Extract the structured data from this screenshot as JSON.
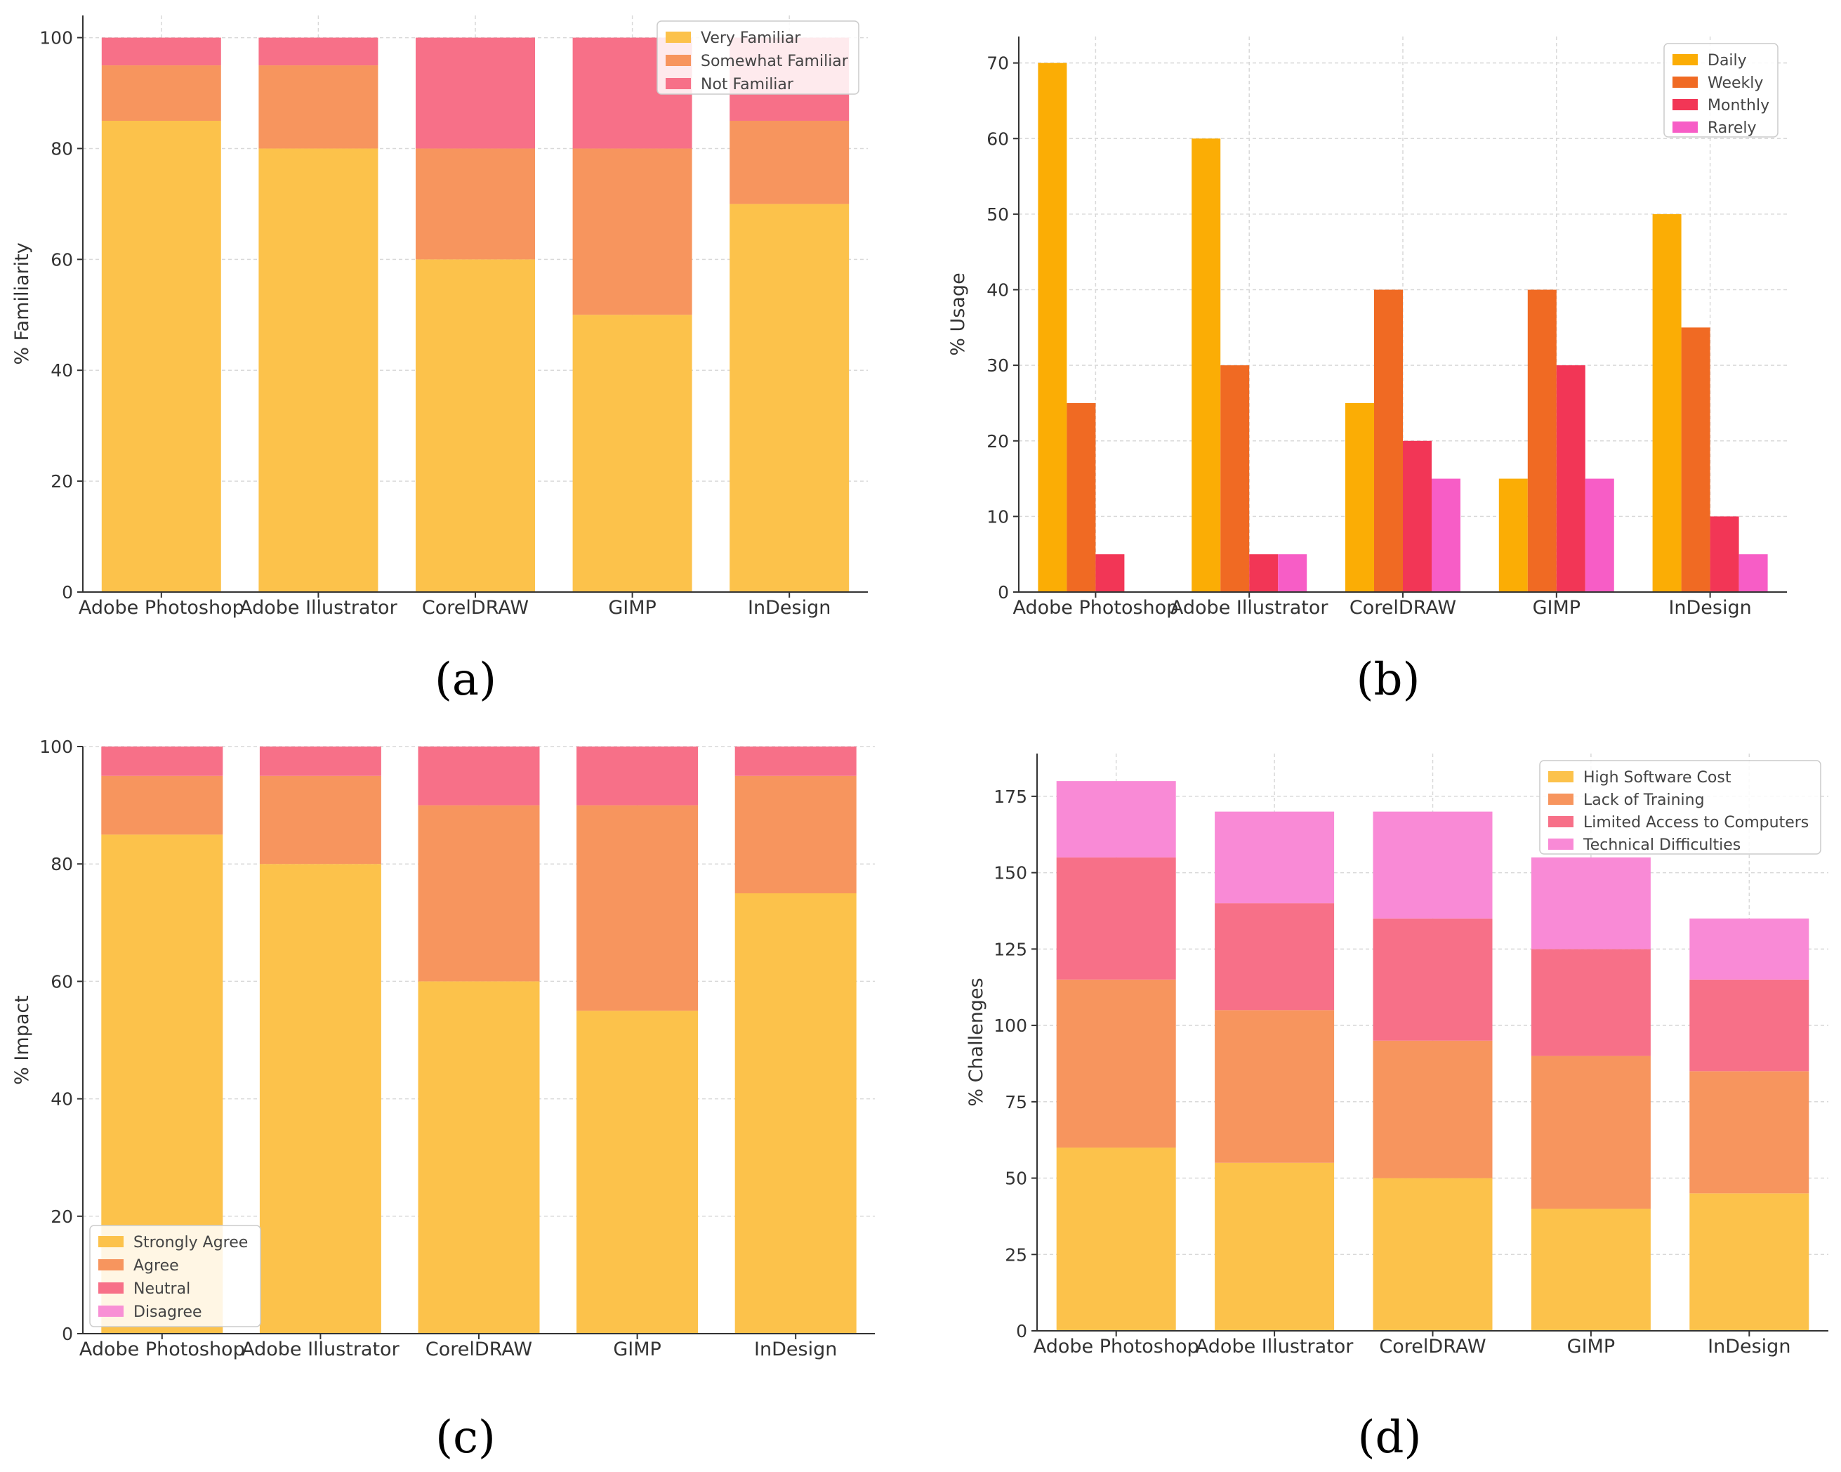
{
  "panel_labels": [
    "(a)",
    "(b)",
    "(c)",
    "(d)"
  ],
  "colors": {
    "familiarity": [
      "#fcc24b",
      "#f7955e",
      "#f77088"
    ],
    "usage": [
      "#fbad05",
      "#f06a23",
      "#f23656",
      "#f75dc6"
    ],
    "impact": [
      "#fcc24b",
      "#f7955e",
      "#f77088",
      "#f890d5"
    ],
    "challenges": [
      "#fcc24b",
      "#f7955e",
      "#f77088",
      "#f98ad6"
    ]
  },
  "chart_data": [
    {
      "type": "bar",
      "stacked": true,
      "categories": [
        "Adobe Photoshop",
        "Adobe Illustrator",
        "CorelDRAW",
        "GIMP",
        "InDesign"
      ],
      "series": [
        {
          "name": "Very Familiar",
          "values": [
            85,
            80,
            60,
            50,
            70
          ]
        },
        {
          "name": "Somewhat Familiar",
          "values": [
            10,
            15,
            20,
            30,
            15
          ]
        },
        {
          "name": "Not Familiar",
          "values": [
            5,
            5,
            20,
            20,
            15
          ]
        }
      ],
      "ylabel": "% Familiarity",
      "ylim": [
        0,
        104
      ],
      "yticks": [
        0,
        20,
        40,
        60,
        80,
        100
      ],
      "grid": true,
      "legend": "top-right"
    },
    {
      "type": "bar",
      "stacked": false,
      "categories": [
        "Adobe Photoshop",
        "Adobe Illustrator",
        "CorelDRAW",
        "GIMP",
        "InDesign"
      ],
      "series": [
        {
          "name": "Daily",
          "values": [
            70,
            60,
            25,
            15,
            50
          ]
        },
        {
          "name": "Weekly",
          "values": [
            25,
            30,
            40,
            40,
            35
          ]
        },
        {
          "name": "Monthly",
          "values": [
            5,
            5,
            20,
            30,
            10
          ]
        },
        {
          "name": "Rarely",
          "values": [
            0,
            5,
            15,
            15,
            5
          ]
        }
      ],
      "ylabel": "% Usage",
      "ylim": [
        0,
        73.5
      ],
      "yticks": [
        0,
        10,
        20,
        30,
        40,
        50,
        60,
        70
      ],
      "grid": true,
      "legend": "top-right"
    },
    {
      "type": "bar",
      "stacked": true,
      "categories": [
        "Adobe Photoshop",
        "Adobe Illustrator",
        "CorelDRAW",
        "GIMP",
        "InDesign"
      ],
      "series": [
        {
          "name": "Strongly Agree",
          "values": [
            85,
            80,
            60,
            55,
            75
          ]
        },
        {
          "name": "Agree",
          "values": [
            10,
            15,
            30,
            35,
            20
          ]
        },
        {
          "name": "Neutral",
          "values": [
            5,
            5,
            10,
            10,
            5
          ]
        },
        {
          "name": "Disagree",
          "values": [
            0,
            0,
            0,
            0,
            0
          ]
        }
      ],
      "ylabel": "% Impact",
      "ylim": [
        0,
        100
      ],
      "yticks": [
        0,
        20,
        40,
        60,
        80,
        100
      ],
      "grid": true,
      "legend": "bottom-left"
    },
    {
      "type": "bar",
      "stacked": true,
      "categories": [
        "Adobe Photoshop",
        "Adobe Illustrator",
        "CorelDRAW",
        "GIMP",
        "InDesign"
      ],
      "series": [
        {
          "name": "High Software Cost",
          "values": [
            60,
            55,
            50,
            40,
            45
          ]
        },
        {
          "name": "Lack of Training",
          "values": [
            55,
            50,
            45,
            50,
            40
          ]
        },
        {
          "name": "Limited Access to Computers",
          "values": [
            40,
            35,
            40,
            35,
            30
          ]
        },
        {
          "name": "Technical Difficulties",
          "values": [
            25,
            30,
            35,
            30,
            20
          ]
        }
      ],
      "ylabel": "% Challenges",
      "ylim": [
        0,
        189
      ],
      "yticks": [
        0,
        25,
        50,
        75,
        100,
        125,
        150,
        175
      ],
      "grid": true,
      "legend": "top-right"
    }
  ]
}
